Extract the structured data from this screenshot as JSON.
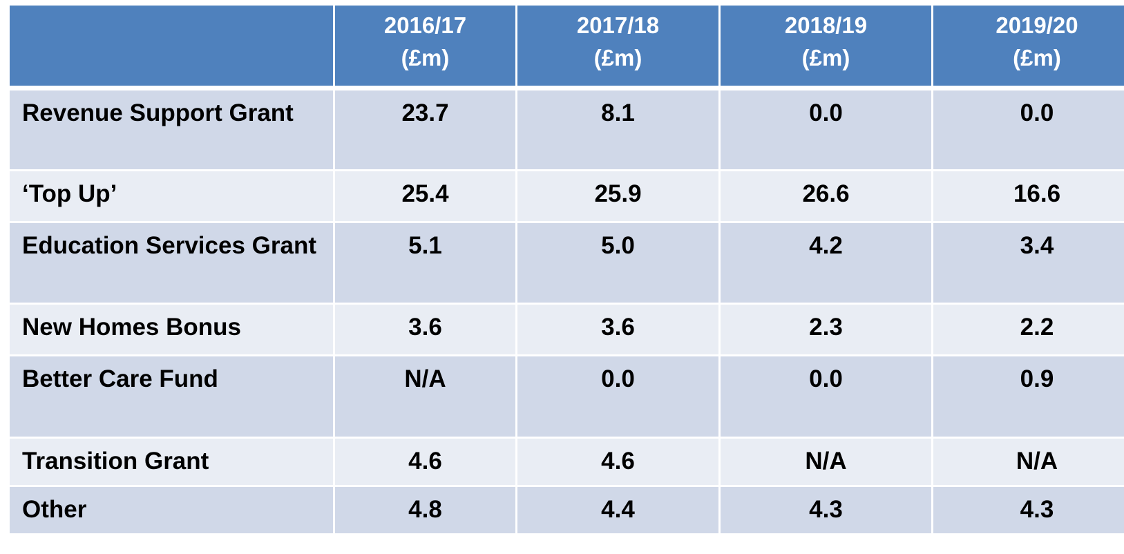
{
  "table": {
    "header": [
      "",
      "2016/17\n(£m)",
      "2017/18\n(£m)",
      "2018/19\n(£m)",
      "2019/20\n(£m)"
    ],
    "rows": [
      [
        "Revenue Support Grant",
        "23.7",
        "8.1",
        "0.0",
        "0.0"
      ],
      [
        "‘Top Up’",
        "25.4",
        "25.9",
        "26.6",
        "16.6"
      ],
      [
        "Education Services Grant",
        "5.1",
        "5.0",
        "4.2",
        "3.4"
      ],
      [
        "New Homes Bonus",
        "3.6",
        "3.6",
        "2.3",
        "2.2"
      ],
      [
        "Better Care Fund",
        "N/A",
        "0.0",
        "0.0",
        "0.9"
      ],
      [
        "Transition Grant",
        "4.6",
        "4.6",
        "N/A",
        "N/A"
      ],
      [
        "Other",
        "4.8",
        "4.4",
        "4.3",
        "4.3"
      ]
    ]
  }
}
